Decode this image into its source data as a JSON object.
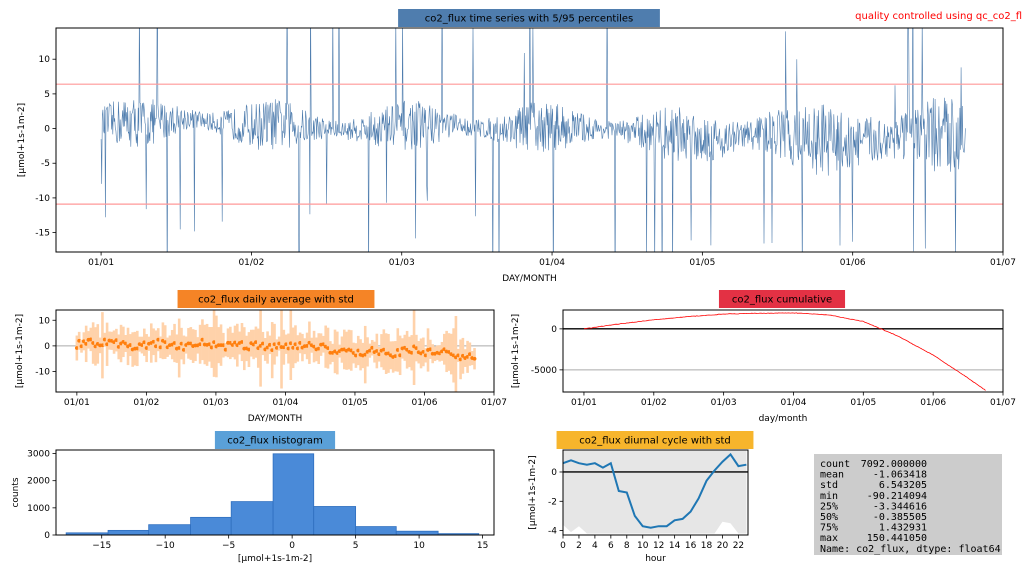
{
  "note": "quality controlled using qc_co2_fl",
  "chart_data": [
    {
      "type": "line",
      "title": "co2_flux time series with 5/95 percentiles",
      "xlabel": "DAY/MONTH",
      "ylabel": "[µmol+1s-1m-2]",
      "x_ticks": [
        "01/01",
        "01/02",
        "01/03",
        "01/04",
        "01/05",
        "01/06",
        "01/07"
      ],
      "y_ticks": [
        -15,
        -10,
        -5,
        0,
        5,
        10
      ],
      "xlim": [
        -0.3,
        6.0
      ],
      "ylim": [
        -17.8,
        14.5
      ],
      "x_start_month": 0.0,
      "x_end_month": 5.75,
      "percentile_lines": [
        6.4,
        -10.9
      ],
      "series": [
        {
          "values": [
            0.5,
            1.0,
            0.8,
            1.2,
            1.5,
            0.9,
            0.6,
            0.4,
            0.7,
            0.3,
            0.1,
            -0.3,
            0.0,
            0.2,
            0.5,
            0.6,
            0.4,
            0.1,
            -0.2,
            0.1,
            0.3,
            0.2,
            0.0,
            -0.2,
            -0.4,
            -0.6,
            -0.8,
            -1.2,
            -1.6,
            -1.0,
            -0.6,
            -0.9,
            -1.4,
            -1.8,
            -2.0,
            -1.6,
            -1.2,
            -0.8,
            -1.0,
            -0.6
          ]
        }
      ],
      "color": "#4f7dae"
    },
    {
      "type": "scatter",
      "title": "co2_flux daily average with std",
      "xlabel": "DAY/MONTH",
      "ylabel": "[µmol+1s-1m-2]",
      "x_ticks": [
        "01/01",
        "01/02",
        "01/03",
        "01/04",
        "01/05",
        "01/06",
        "01/07"
      ],
      "y_ticks": [
        -10,
        0,
        10
      ],
      "xlim": [
        -0.3,
        6.0
      ],
      "ylim": [
        -18,
        14
      ],
      "x_start_month": 0.0,
      "x_end_month": 5.72,
      "series": [
        {
          "values": [
            0.5,
            1.5,
            0.8,
            2.0,
            1.0,
            0.3,
            -0.5,
            0.5,
            1.0,
            0.0,
            -0.5,
            0.2,
            1.2,
            0.5,
            -0.3,
            0.0,
            0.5,
            -0.2,
            0.3,
            -0.8,
            0.4,
            0.0,
            -0.3,
            0.6,
            -0.5,
            -1.5,
            -2.5,
            -2.0,
            -3.0,
            -1.5,
            -2.5,
            -3.5,
            -2.0,
            -1.5,
            -3.0,
            -2.5,
            -2.0,
            -3.5,
            -4.0,
            -5.0
          ]
        }
      ],
      "color": "#ff7f0e"
    },
    {
      "type": "line",
      "title": "co2_flux cumulative",
      "xlabel": "day/month",
      "ylabel": "[µmol+1s-1m-2]",
      "x_ticks": [
        "01/01",
        "01/02",
        "01/03",
        "01/04",
        "01/05",
        "01/06",
        "01/07"
      ],
      "y_ticks": [
        -5000,
        0
      ],
      "xlim": [
        -0.3,
        6.0
      ],
      "ylim": [
        -7700,
        2300
      ],
      "x_start_month": 0.0,
      "x_end_month": 5.75,
      "ref_lines": [
        0,
        -5000
      ],
      "x": [
        0,
        0.5,
        1.0,
        1.5,
        2.0,
        2.5,
        3.0,
        3.5,
        4.0,
        4.5,
        5.0,
        5.5,
        5.75
      ],
      "values": [
        0,
        600,
        1100,
        1500,
        1800,
        1900,
        1950,
        1700,
        900,
        -900,
        -3200,
        -6000,
        -7500
      ],
      "color": "#ff0000"
    },
    {
      "type": "bar",
      "title": "co2_flux histogram",
      "xlabel": "[µmol+1s-1m-2]",
      "ylabel": "counts",
      "x_ticks": [
        -15,
        -10,
        -5,
        0,
        5,
        10,
        15
      ],
      "y_ticks": [
        0,
        1000,
        2000,
        3000
      ],
      "xlim": [
        -18.6,
        15.9
      ],
      "ylim": [
        0,
        3130
      ],
      "bin_edges": [
        -17.8,
        -14.5,
        -11.3,
        -8.0,
        -4.8,
        -1.5,
        1.7,
        5.0,
        8.2,
        11.5,
        14.7
      ],
      "values": [
        80,
        170,
        380,
        650,
        1230,
        2990,
        1050,
        310,
        140,
        50
      ],
      "color": "#4a8ad8"
    },
    {
      "type": "line",
      "title": "co2_flux diurnal cycle with std",
      "xlabel": "hour",
      "ylabel": "[µmol+1s-1m-2]",
      "x_ticks": [
        0,
        2,
        4,
        6,
        8,
        10,
        12,
        14,
        16,
        18,
        20,
        22
      ],
      "y_ticks": [
        -4,
        -2,
        0
      ],
      "xlim": [
        0,
        23.2
      ],
      "ylim": [
        -4.3,
        1.5
      ],
      "x": [
        0,
        1,
        2,
        3,
        4,
        5,
        6,
        7,
        8,
        9,
        10,
        11,
        12,
        13,
        14,
        15,
        16,
        17,
        18,
        19,
        20,
        21,
        22,
        23
      ],
      "values": [
        0.6,
        0.8,
        0.6,
        0.5,
        0.6,
        0.3,
        0.6,
        -1.3,
        -1.4,
        -3.0,
        -3.7,
        -3.8,
        -3.7,
        -3.7,
        -3.3,
        -3.2,
        -2.7,
        -1.8,
        -0.6,
        0.1,
        0.7,
        1.2,
        0.4,
        0.5
      ],
      "std_low": [
        -3.6,
        -4.1,
        -3.7,
        -4.2,
        -4.2,
        -4.2,
        -4.2,
        -4.2,
        -4.2,
        -4.2,
        -4.2,
        -4.2,
        -4.2,
        -4.2,
        -4.2,
        -4.2,
        -4.2,
        -4.2,
        -4.2,
        -4.2,
        -3.4,
        -3.5,
        -4.2,
        -4.2
      ],
      "std_high": [
        1.5,
        1.5,
        1.5,
        1.5,
        1.5,
        1.5,
        1.5,
        1.5,
        1.5,
        1.5,
        1.5,
        1.5,
        1.5,
        1.5,
        1.5,
        1.5,
        1.5,
        1.5,
        1.5,
        1.5,
        1.5,
        1.5,
        1.5,
        1.5
      ],
      "color": "#1f77b4"
    }
  ],
  "titles": {
    "ts": "co2_flux time series with 5/95 percentiles",
    "daily": "co2_flux daily average with std",
    "cum": "co2_flux cumulative",
    "hist": "co2_flux histogram",
    "diurnal": "co2_flux diurnal cycle with std"
  },
  "title_colors": {
    "ts": "#4f7dae",
    "daily": "#f58426",
    "cum": "#e33144",
    "hist": "#5aa0d8",
    "diurnal": "#f7b52c"
  },
  "stats": [
    [
      "count",
      "7092.000000"
    ],
    [
      "mean",
      "-1.063418"
    ],
    [
      "std",
      "6.543205"
    ],
    [
      "min",
      "-90.214094"
    ],
    [
      "25%",
      "-3.344616"
    ],
    [
      "50%",
      "-0.385505"
    ],
    [
      "75%",
      "1.432931"
    ],
    [
      "max",
      "150.441050"
    ]
  ],
  "stats_footer": "Name: co2_flux, dtype: float64"
}
